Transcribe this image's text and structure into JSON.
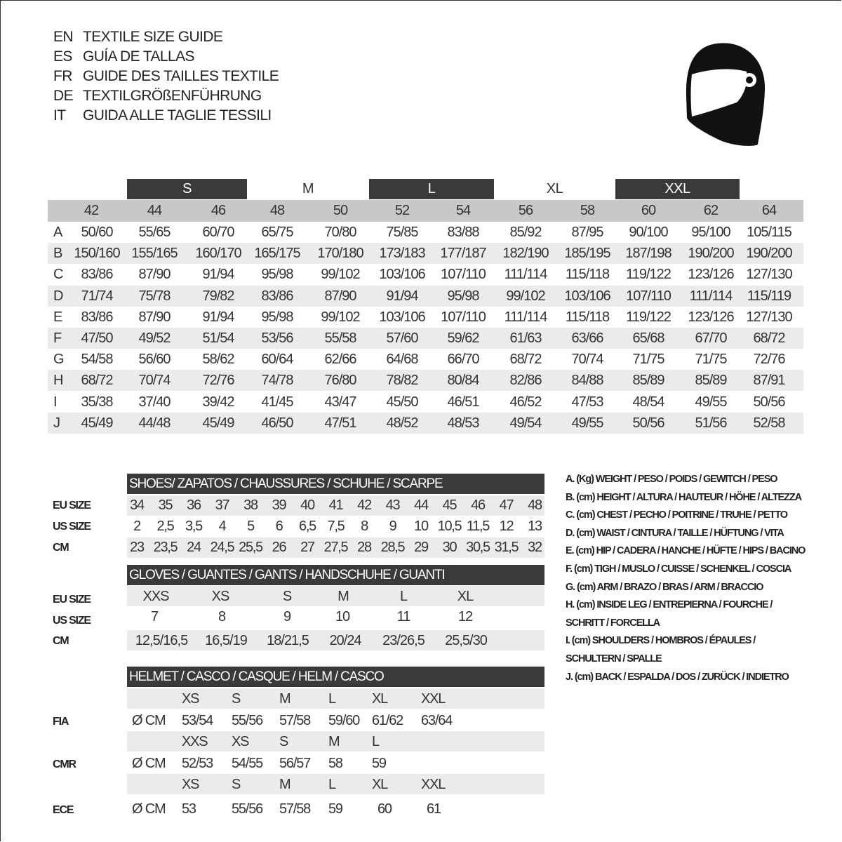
{
  "titles": [
    {
      "code": "EN",
      "text": "TEXTILE SIZE GUIDE"
    },
    {
      "code": "ES",
      "text": "GUÍA DE TALLAS"
    },
    {
      "code": "FR",
      "text": "GUIDE DES TAILLES TEXTILE"
    },
    {
      "code": "DE",
      "text": "TEXTILGRÖßENFÜHRUNG"
    },
    {
      "code": "IT",
      "text": "GUIDA ALLE TAGLIE TESSILI"
    }
  ],
  "logo_icon": "helmet-icon",
  "colors": {
    "dark_bar": "#3a3a3a",
    "header_band": "#c8c8c8",
    "stripe": "#ebebeb"
  },
  "textile_table": {
    "size_groups": [
      {
        "label": "S",
        "style": "dark"
      },
      {
        "label": "M",
        "style": "light"
      },
      {
        "label": "L",
        "style": "dark"
      },
      {
        "label": "XL",
        "style": "light"
      },
      {
        "label": "XXL",
        "style": "dark"
      }
    ],
    "sizes": [
      "42",
      "44",
      "46",
      "48",
      "50",
      "52",
      "54",
      "56",
      "58",
      "60",
      "62",
      "64"
    ],
    "rows": [
      {
        "label": "A",
        "values": [
          "50/60",
          "55/65",
          "60/70",
          "65/75",
          "70/80",
          "75/85",
          "83/88",
          "85/92",
          "87/95",
          "90/100",
          "95/100",
          "105/115"
        ]
      },
      {
        "label": "B",
        "values": [
          "150/160",
          "155/165",
          "160/170",
          "165/175",
          "170/180",
          "173/183",
          "177/187",
          "182/190",
          "185/195",
          "187/198",
          "190/200",
          "190/200"
        ]
      },
      {
        "label": "C",
        "values": [
          "83/86",
          "87/90",
          "91/94",
          "95/98",
          "99/102",
          "103/106",
          "107/110",
          "111/114",
          "115/118",
          "119/122",
          "123/126",
          "127/130"
        ]
      },
      {
        "label": "D",
        "values": [
          "71/74",
          "75/78",
          "79/82",
          "83/86",
          "87/90",
          "91/94",
          "95/98",
          "99/102",
          "103/106",
          "107/110",
          "111/114",
          "115/119"
        ]
      },
      {
        "label": "E",
        "values": [
          "83/86",
          "87/90",
          "91/94",
          "95/98",
          "99/102",
          "103/106",
          "107/110",
          "111/114",
          "115/118",
          "119/122",
          "123/126",
          "127/130"
        ]
      },
      {
        "label": "F",
        "values": [
          "47/50",
          "49/52",
          "51/54",
          "53/56",
          "55/58",
          "57/60",
          "59/62",
          "61/63",
          "63/66",
          "65/68",
          "67/70",
          "68/72"
        ]
      },
      {
        "label": "G",
        "values": [
          "54/58",
          "56/60",
          "58/62",
          "60/64",
          "62/66",
          "64/68",
          "66/70",
          "68/72",
          "70/74",
          "71/75",
          "71/75",
          "72/76"
        ]
      },
      {
        "label": "H",
        "values": [
          "68/72",
          "70/74",
          "72/76",
          "74/78",
          "76/80",
          "78/82",
          "80/84",
          "82/86",
          "84/88",
          "85/89",
          "85/89",
          "87/91"
        ]
      },
      {
        "label": "I",
        "values": [
          "35/38",
          "37/40",
          "39/42",
          "41/45",
          "43/47",
          "45/50",
          "46/51",
          "46/52",
          "47/53",
          "48/54",
          "49/55",
          "50/56"
        ]
      },
      {
        "label": "J",
        "values": [
          "45/49",
          "44/48",
          "45/49",
          "46/50",
          "47/51",
          "48/52",
          "48/53",
          "49/54",
          "49/55",
          "50/56",
          "51/56",
          "52/58"
        ]
      }
    ]
  },
  "shoes": {
    "title": "SHOES/ ZAPATOS / CHAUSSURES / SCHUHE / SCARPE",
    "rows": [
      {
        "label": "EU SIZE",
        "values": [
          "34",
          "35",
          "36",
          "37",
          "38",
          "39",
          "40",
          "41",
          "42",
          "43",
          "44",
          "45",
          "46",
          "47",
          "48"
        ]
      },
      {
        "label": "US SIZE",
        "values": [
          "2",
          "2,5",
          "3,5",
          "4",
          "5",
          "6",
          "6,5",
          "7,5",
          "8",
          "9",
          "10",
          "10,5",
          "11,5",
          "12",
          "13"
        ]
      },
      {
        "label": "CM",
        "values": [
          "23",
          "23,5",
          "24",
          "24,5",
          "25,5",
          "26",
          "27",
          "27,5",
          "28",
          "28,5",
          "29",
          "30",
          "30,5",
          "31,5",
          "32"
        ]
      }
    ]
  },
  "gloves": {
    "title": "GLOVES / GUANTES / GANTS / HANDSCHUHE / GUANTI",
    "rows": [
      {
        "label": "EU SIZE",
        "values": [
          "XXS",
          "XS",
          "S",
          "M",
          "L",
          "XL"
        ]
      },
      {
        "label": "US SIZE",
        "values": [
          "7",
          "8",
          "9",
          "10",
          "11",
          "12"
        ]
      },
      {
        "label": "CM",
        "values": [
          "12,5/16,5",
          "16,5/19",
          "18/21,5",
          "20/24",
          "23/26,5",
          "25,5/30"
        ]
      }
    ]
  },
  "helmet": {
    "title": "HELMET / CASCO / CASQUE / HELM / CASCO",
    "unit": "Ø CM",
    "standards": [
      {
        "label": "FIA",
        "sizes": [
          "XS",
          "S",
          "M",
          "L",
          "XL",
          "XXL"
        ],
        "values": [
          "53/54",
          "55/56",
          "57/58",
          "59/60",
          "61/62",
          "63/64"
        ]
      },
      {
        "label": "CMR",
        "sizes": [
          "XXS",
          "XS",
          "S",
          "M",
          "L",
          ""
        ],
        "values": [
          "52/53",
          "54/55",
          "56/57",
          "58",
          "59",
          ""
        ]
      },
      {
        "label": "ECE",
        "sizes": [
          "XS",
          "S",
          "M",
          "L",
          "XL",
          "XXL"
        ],
        "values": [
          "53",
          "55/56",
          "57/58",
          "59",
          "60",
          "61"
        ]
      }
    ]
  },
  "legend": [
    "A. (Kg) WEIGHT / PESO / POIDS / GEWITCH / PESO",
    "B. (cm) HEIGHT / ALTURA / HAUTEUR / HÖHE / ALTEZZA",
    "C. (cm) CHEST / PECHO / POITRINE / TRUHE / PETTO",
    "D. (cm) WAIST / CINTURA / TAILLE / HÜFTUNG / VITA",
    "E. (cm) HIP / CADERA / HANCHE / HÜFTE / HIPS /  BACINO",
    "F.  (cm) TIGH / MUSLO / CUISSE / SCHENKEL / COSCIA",
    "G. (cm) ARM  / BRAZO / BRAS / ARM / BRACCIO",
    "H. (cm) INSIDE LEG / ENTREPIERNA / FOURCHE /",
    "SCHRITT / FORCELLA",
    "I.  (cm) SHOULDERS / HOMBROS / ÉPAULES /",
    "SCHULTERN / SPALLE",
    "J. (cm) BACK / ESPALDA / DOS / ZURÜCK / INDIETRO"
  ]
}
